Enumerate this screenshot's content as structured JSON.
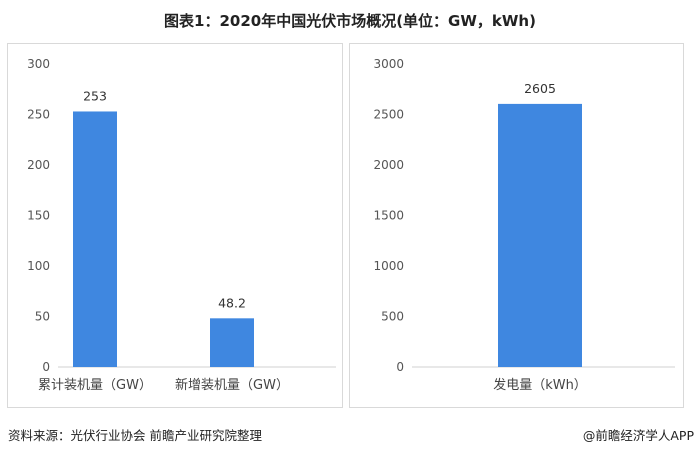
{
  "title": "图表1：2020年中国光伏市场概况(单位：GW，kWh)",
  "source": "资料来源：光伏行业协会 前瞻产业研究院整理",
  "brand": "@前瞻经济学人APP",
  "chart_data": [
    {
      "type": "bar",
      "categories": [
        "累计装机量（GW）",
        "新增装机量（GW）"
      ],
      "values": [
        253,
        48.2
      ],
      "value_labels": [
        "253",
        "48.2"
      ],
      "ylim": [
        0,
        300
      ],
      "yticks": [
        0,
        50,
        100,
        150,
        200,
        250,
        300
      ],
      "grid": false,
      "color": "#3f87e0"
    },
    {
      "type": "bar",
      "categories": [
        "发电量（kWh）"
      ],
      "values": [
        2605
      ],
      "value_labels": [
        "2605"
      ],
      "ylim": [
        0,
        3000
      ],
      "yticks": [
        0,
        500,
        1000,
        1500,
        2000,
        2500,
        3000
      ],
      "grid": false,
      "color": "#3f87e0"
    }
  ]
}
